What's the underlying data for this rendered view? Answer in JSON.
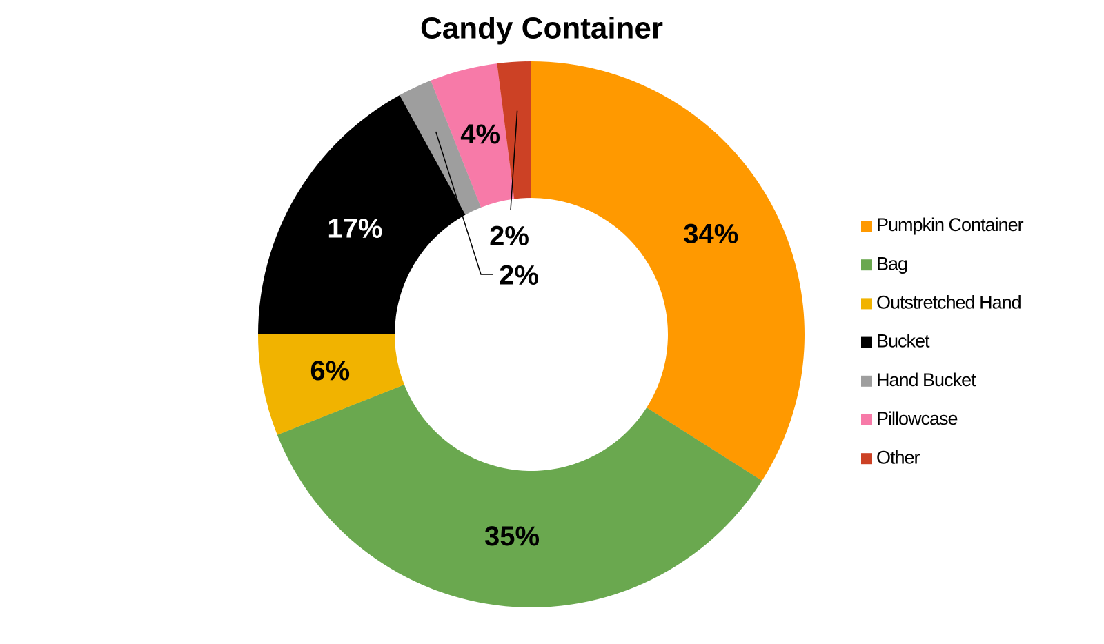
{
  "chart_data": {
    "type": "donut",
    "title": "Candy Container",
    "categories": [
      "Pumpkin Container",
      "Bag",
      "Outstretched Hand",
      "Bucket",
      "Hand Bucket",
      "Pillowcase",
      "Other"
    ],
    "values": [
      34,
      35,
      6,
      17,
      2,
      4,
      2
    ],
    "value_labels": [
      "34%",
      "35%",
      "6%",
      "17%",
      "2%",
      "4%",
      "2%"
    ],
    "colors": [
      "#ff9900",
      "#6aa84f",
      "#f1b300",
      "#000000",
      "#9e9e9e",
      "#f77aa8",
      "#cc4125"
    ],
    "legend": "right"
  }
}
